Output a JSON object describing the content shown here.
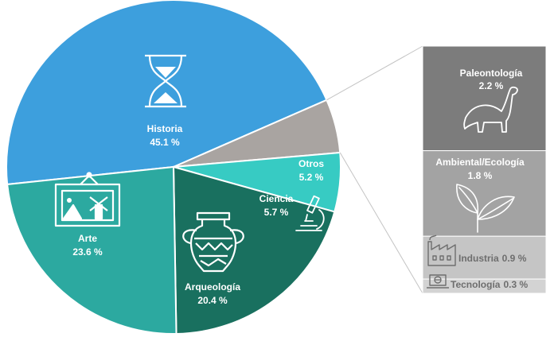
{
  "chart_data": [
    {
      "type": "pie",
      "slices": [
        {
          "label": "Historia",
          "value": 45.1,
          "display": "45.1 %",
          "color": "#3d9fdd",
          "icon": "hourglass-icon"
        },
        {
          "label": "Otros",
          "value": 5.2,
          "display": "5.2 %",
          "color": "#a9a4a1",
          "icon": ""
        },
        {
          "label": "Ciencia",
          "value": 5.7,
          "display": "5.7 %",
          "color": "#37cbc3",
          "icon": "microscope-icon"
        },
        {
          "label": "Arqueología",
          "value": 20.4,
          "display": "20.4 %",
          "color": "#19705f",
          "icon": "amphora-icon"
        },
        {
          "label": "Arte",
          "value": 23.6,
          "display": "23.6 %",
          "color": "#2ca9a0",
          "icon": "painting-icon"
        }
      ]
    },
    {
      "type": "bar",
      "stacked": true,
      "breakdown_of": "Otros",
      "segments": [
        {
          "label": "Paleontología",
          "value": 2.2,
          "display": "2.2 %",
          "color": "#7c7c7c",
          "icon": "dinosaur-icon"
        },
        {
          "label": "Ambiental/Ecología",
          "value": 1.8,
          "display": "1.8 %",
          "color": "#a3a3a3",
          "icon": "leaves-icon"
        },
        {
          "label": "Industria",
          "value": 0.9,
          "display": "0.9 %",
          "color": "#c5c5c5",
          "icon": "factory-icon"
        },
        {
          "label": "Tecnología",
          "value": 0.3,
          "display": "0.3 %",
          "color": "#d3d3d3",
          "icon": "laptop-icon"
        }
      ]
    }
  ]
}
